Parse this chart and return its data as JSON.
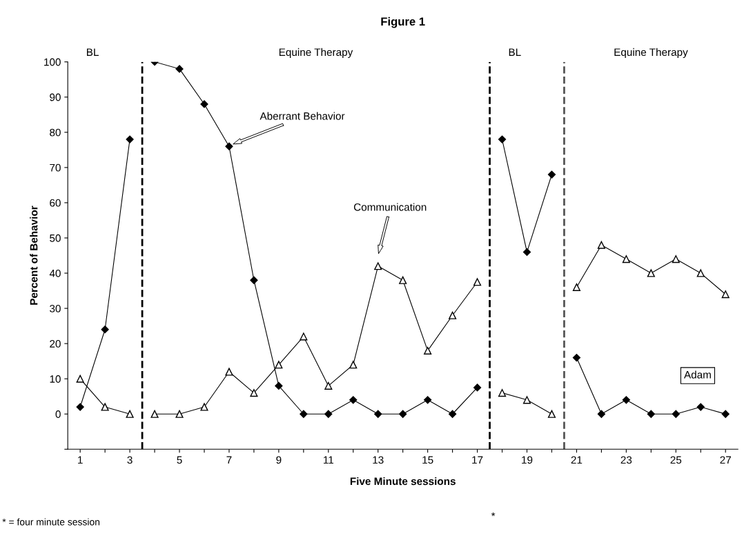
{
  "chart_data": {
    "type": "line",
    "title": "Figure 1",
    "xlabel": "Five Minute sessions",
    "ylabel": "Percent of Behavior",
    "x": [
      1,
      2,
      3,
      4,
      5,
      6,
      7,
      8,
      9,
      10,
      11,
      12,
      13,
      14,
      15,
      16,
      17,
      18,
      19,
      20,
      21,
      22,
      23,
      24,
      25,
      26,
      27
    ],
    "series": [
      {
        "color": "#000000",
        "marker": "diamond",
        "values": [
          2,
          24,
          78,
          100,
          98,
          88,
          76,
          38,
          8,
          0,
          0,
          4,
          0,
          0,
          4,
          0,
          7.5,
          78,
          46,
          68,
          16,
          0,
          4,
          0,
          0,
          2,
          0
        ]
      },
      {
        "color": "#000000",
        "marker": "triangle",
        "values": [
          10,
          2,
          0,
          0,
          0,
          2,
          12,
          6,
          14,
          22,
          8,
          14,
          42,
          38,
          18,
          28,
          37.5,
          6,
          4,
          0,
          36,
          48,
          44,
          40,
          44,
          40,
          34
        ]
      }
    ],
    "xlim": [
      0.5,
      27.5
    ],
    "xticks": [
      1,
      {
        "value": 2,
        "label": null
      },
      3,
      {
        "value": 4,
        "label": null
      },
      5,
      {
        "value": 6,
        "label": null
      },
      7,
      {
        "value": 8,
        "label": null
      },
      9,
      {
        "value": 10,
        "label": null
      },
      11,
      {
        "value": 12,
        "label": null
      },
      13,
      {
        "value": 14,
        "label": null
      },
      15,
      {
        "value": 16,
        "label": null
      },
      17,
      {
        "value": 18,
        "label": null
      },
      19,
      {
        "value": 20,
        "label": null
      },
      21,
      {
        "value": 22,
        "label": null
      },
      23,
      {
        "value": 24,
        "label": null
      },
      25,
      {
        "value": 26,
        "label": null
      },
      27
    ],
    "ylim": [
      -10,
      100
    ],
    "yticks": [
      {
        "value": -10,
        "label": null
      },
      0,
      10,
      20,
      30,
      40,
      50,
      60,
      70,
      80,
      90,
      100
    ],
    "ref_lines": [
      {
        "axis": "x",
        "value": 3.5,
        "color": "#000000",
        "line_style": "dashed"
      },
      {
        "axis": "x",
        "value": 17.5,
        "color": "#000000",
        "line_style": "dashed"
      },
      {
        "axis": "x",
        "value": 20.5,
        "color": "#555555",
        "line_style": "dashed"
      }
    ],
    "annotations": [
      "BL",
      "Equine Therapy",
      "BL",
      "Equine Therapy",
      "Aberrant Behavior",
      "Communication",
      "Adam",
      "* = four minute session",
      "*"
    ],
    "grid": false,
    "line_style": "solid"
  }
}
